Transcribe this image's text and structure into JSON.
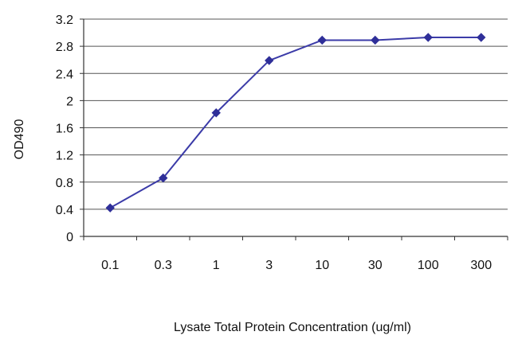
{
  "chart_data": {
    "type": "line",
    "title": "",
    "xlabel": "Lysate Total Protein Concentration (ug/ml)",
    "ylabel": "OD490",
    "categories": [
      "0.1",
      "0.3",
      "1",
      "3",
      "10",
      "30",
      "100",
      "300"
    ],
    "y_ticks": [
      "0",
      "0.4",
      "0.8",
      "1.2",
      "1.6",
      "2",
      "2.4",
      "2.8",
      "3.2"
    ],
    "ylim": [
      0,
      3.2
    ],
    "grid": "horizontal",
    "legend": "none",
    "series": [
      {
        "values": [
          0.42,
          0.86,
          1.82,
          2.59,
          2.89,
          2.89,
          2.93,
          2.93
        ],
        "color": "#3b3ba8"
      }
    ],
    "colors": {
      "line": "#3b3ba8",
      "marker": "#2f2f99",
      "grid": "#555555",
      "axis": "#333333",
      "text": "#111111"
    }
  }
}
